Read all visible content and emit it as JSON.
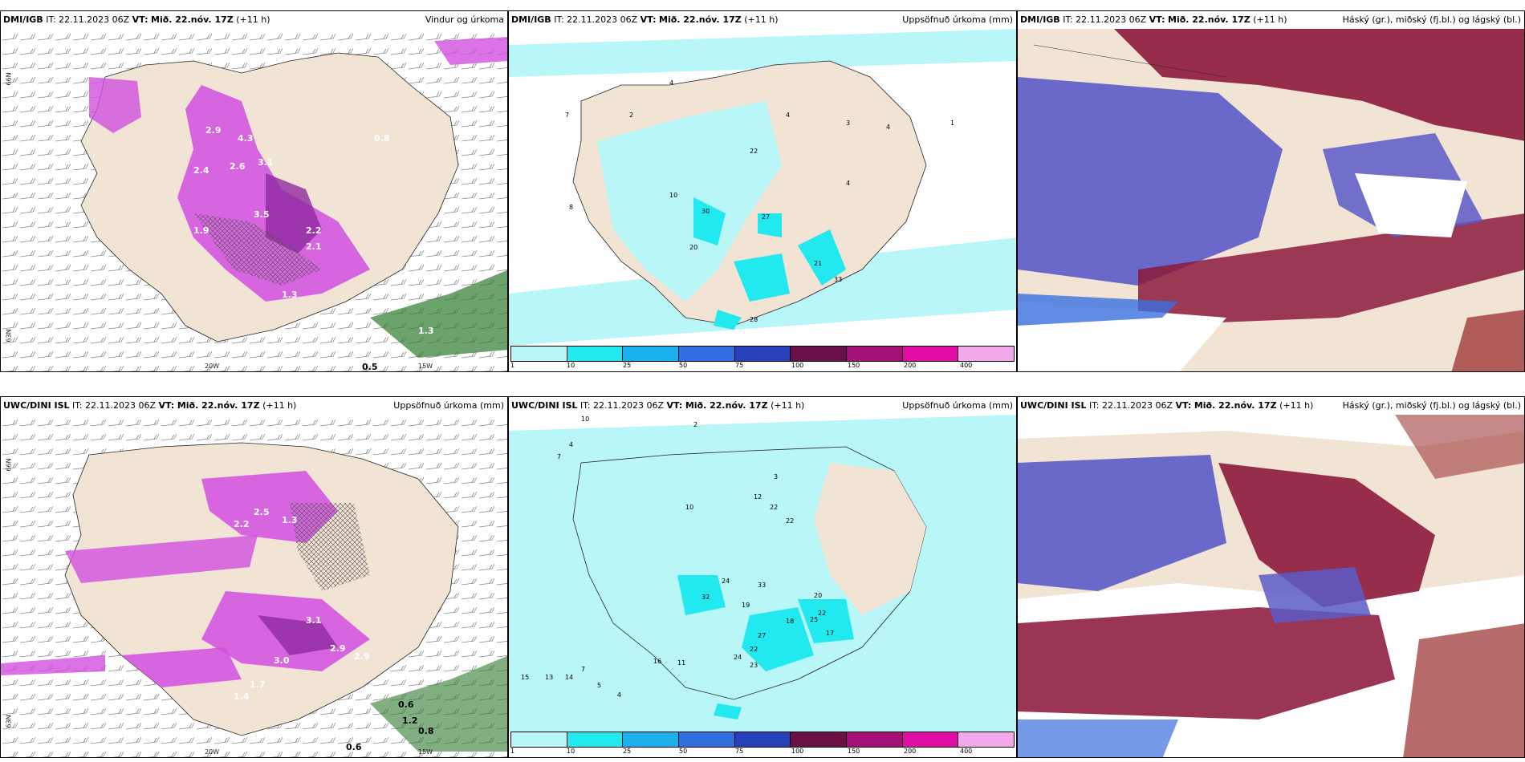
{
  "panels": [
    {
      "model": "DMI/IGB",
      "it": "IT: 22.11.2023 06Z",
      "vt_label": "VT:",
      "vt": "Mið. 22.nóv. 17Z",
      "lead": "(+11 h)",
      "field": "Vindur og úrkoma"
    },
    {
      "model": "DMI/IGB",
      "it": "IT: 22.11.2023 06Z",
      "vt_label": "VT:",
      "vt": "Mið. 22.nóv. 17Z",
      "lead": "(+11 h)",
      "field": "Uppsöfnuð úrkoma (mm)"
    },
    {
      "model": "DMI/IGB",
      "it": "IT: 22.11.2023 06Z",
      "vt_label": "VT:",
      "vt": "Mið. 22.nóv. 17Z",
      "lead": "(+11 h)",
      "field": "Háský (gr.), miðský (fj.bl.) og lágský (bl.)"
    },
    {
      "model": "UWC/DINI ISL",
      "it": "IT: 22.11.2023 06Z",
      "vt_label": "VT:",
      "vt": "Mið. 22.nóv. 17Z",
      "lead": "(+11 h)",
      "field": "Uppsöfnuð úrkoma (mm)"
    },
    {
      "model": "UWC/DINI ISL",
      "it": "IT: 22.11.2023 06Z",
      "vt_label": "VT:",
      "vt": "Mið. 22.nóv. 17Z",
      "lead": "(+11 h)",
      "field": "Uppsöfnuð úrkoma (mm)"
    },
    {
      "model": "UWC/DINI ISL",
      "it": "IT: 22.11.2023 06Z",
      "vt_label": "VT:",
      "vt": "Mið. 22.nóv. 17Z",
      "lead": "(+11 h)",
      "field": "Háský (gr.), miðský (fj.bl.) og lágský (bl.)"
    }
  ],
  "axes": {
    "lat_66": "66N",
    "lat_63": "63N",
    "lon_20": "20W",
    "lon_15": "15W"
  },
  "colorbar": {
    "labels": [
      "1",
      "10",
      "25",
      "50",
      "75",
      "100",
      "150",
      "200",
      "400"
    ],
    "colors": [
      "#b8f6f8",
      "#22e8ef",
      "#1ab0ee",
      "#2f6fe0",
      "#2540b8",
      "#6a0f48",
      "#a51077",
      "#e00ca5",
      "#f3a8ec"
    ]
  },
  "precip_labels_top": [
    "7",
    "4",
    "2",
    "4",
    "3",
    "4",
    "1",
    "22",
    "10",
    "4",
    "8",
    "30",
    "27",
    "20",
    "21",
    "33",
    "28"
  ],
  "precip_labels_bottom": [
    "10",
    "7",
    "4",
    "2",
    "3",
    "12",
    "22",
    "22",
    "7",
    "5",
    "10",
    "24",
    "33",
    "20",
    "22",
    "25",
    "17",
    "18",
    "27",
    "19",
    "32",
    "22",
    "24",
    "23",
    "16",
    "11",
    "14",
    "15",
    "13",
    "4"
  ],
  "wind_labels_top": [
    "2.9",
    "4.3",
    "2.4",
    "2.6",
    "3.1",
    "3.5",
    "2.2",
    "2.1",
    "1.9",
    "1.3",
    "0.8",
    "0.5",
    "1.3"
  ],
  "wind_labels_bottom": [
    "2.5",
    "2.2",
    "1.3",
    "2.9",
    "3.1",
    "3.0",
    "2.9",
    "1.7",
    "1.4",
    "0.6",
    "1.2",
    "0.8",
    "0.6"
  ]
}
